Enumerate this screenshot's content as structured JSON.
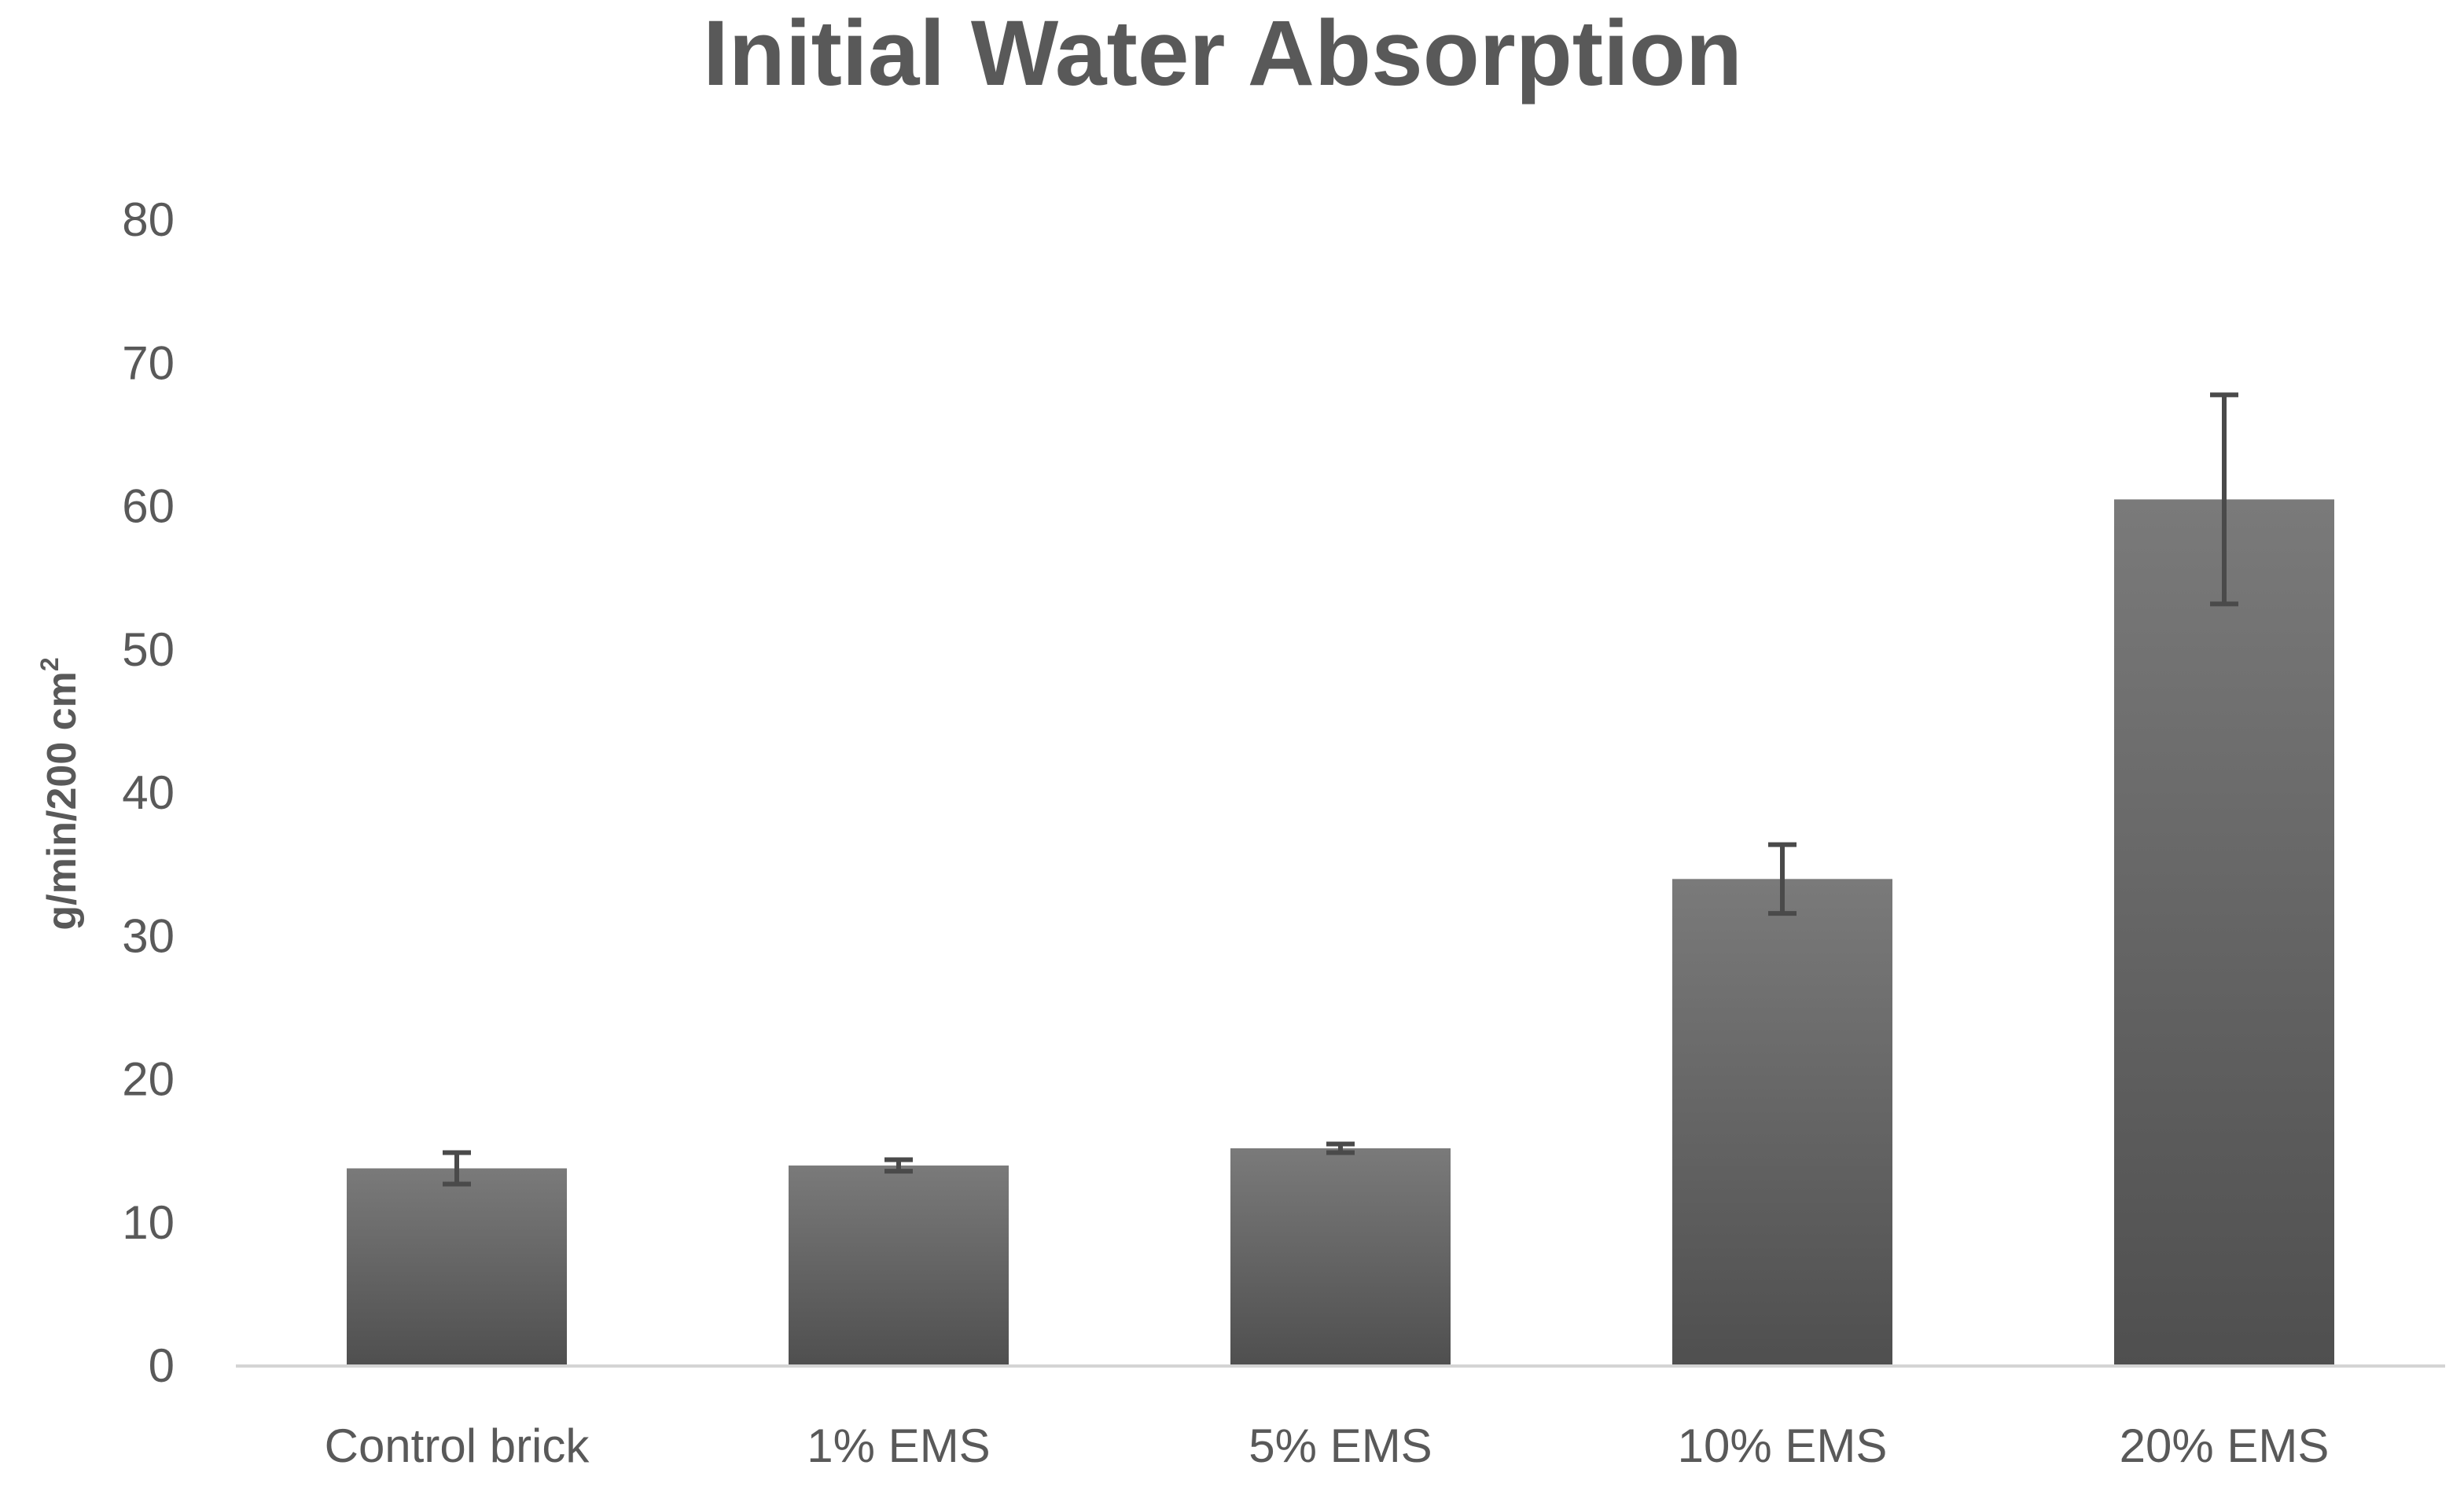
{
  "chart_data": {
    "type": "bar",
    "title": "Initial Water Absorption",
    "ylabel": "g/min/200 cm",
    "ylabel_superscript": "2",
    "xlabel": "",
    "categories": [
      "Control brick",
      "1% EMS",
      "5% EMS",
      "10% EMS",
      "20% EMS"
    ],
    "values": [
      13.8,
      14.0,
      15.2,
      34.0,
      60.5
    ],
    "error_bars": [
      1.1,
      0.4,
      0.3,
      2.4,
      7.3
    ],
    "ylim": [
      0,
      80
    ],
    "yticks": [
      0,
      10,
      20,
      30,
      40,
      50,
      60,
      70,
      80
    ],
    "grid": false,
    "legend": "none"
  },
  "colors": {
    "bar_top": "#7a7a7a",
    "bar_bottom": "#4f4f4f",
    "error_bar": "#4a4a4a",
    "axis": "#d4d4d4",
    "title": "#595959",
    "tick_label": "#595959",
    "axis_title": "#595959"
  }
}
